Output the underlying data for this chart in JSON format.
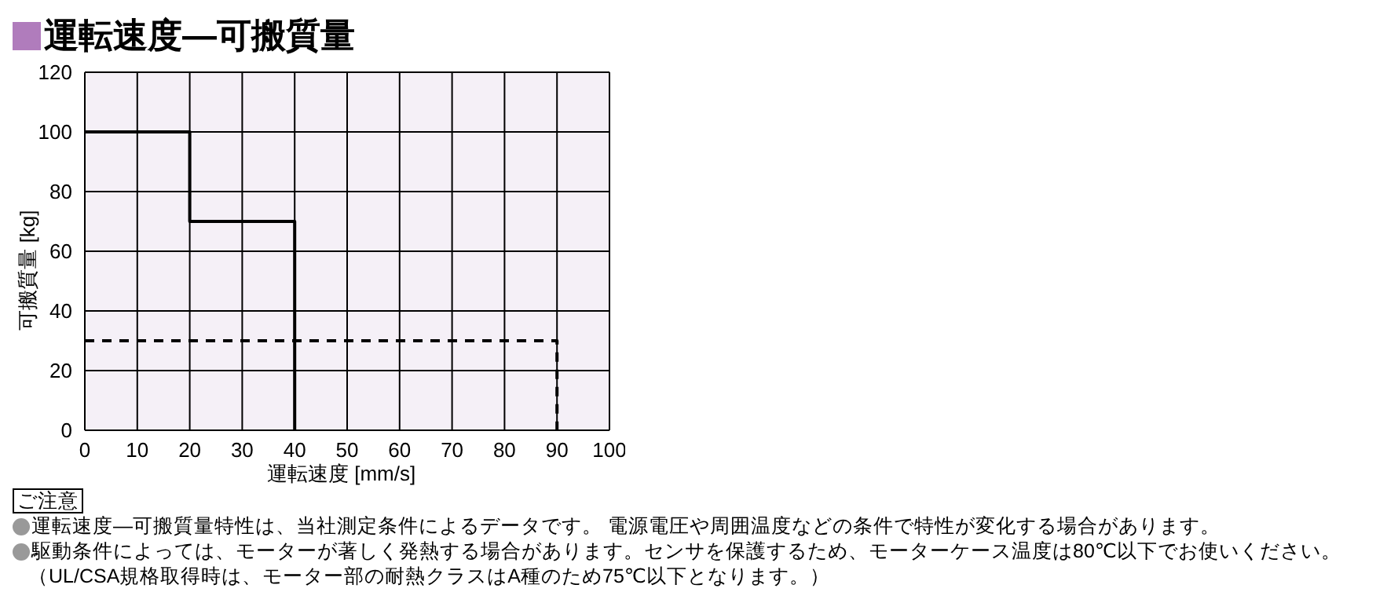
{
  "chart_data": {
    "type": "line",
    "title": "運転速度—可搬質量",
    "xlabel": "運転速度 [mm/s]",
    "ylabel": "可搬質量 [kg]",
    "xlim": [
      0,
      100
    ],
    "xticks": [
      0,
      10,
      20,
      30,
      40,
      50,
      60,
      70,
      80,
      90,
      100
    ],
    "ylim": [
      0,
      120
    ],
    "yticks": [
      0,
      20,
      40,
      60,
      80,
      100,
      120
    ],
    "grid": true,
    "series": [
      {
        "color": "#000000",
        "line_style": "dashed",
        "x": [
          0,
          90,
          90
        ],
        "values": [
          30,
          30,
          0
        ]
      },
      {
        "color": "#000000",
        "line_style": "solid",
        "x": [
          0,
          20,
          20,
          40,
          40
        ],
        "values": [
          100,
          100,
          70,
          70,
          0
        ]
      }
    ],
    "annotations": [
      "ご注意",
      "運転速度—可搬質量特性は、当社測定条件によるデータです。 電源電圧や周囲温度などの条件で特性が変化する場合があります。",
      "駆動条件によっては、モーターが著しく発熱する場合があります。センサを保護するため、モーターケース温度は80℃以下でお使いください。",
      "（UL/CSA規格取得時は、モーター部の耐熱クラスはA種のため75℃以下となります。）"
    ]
  }
}
